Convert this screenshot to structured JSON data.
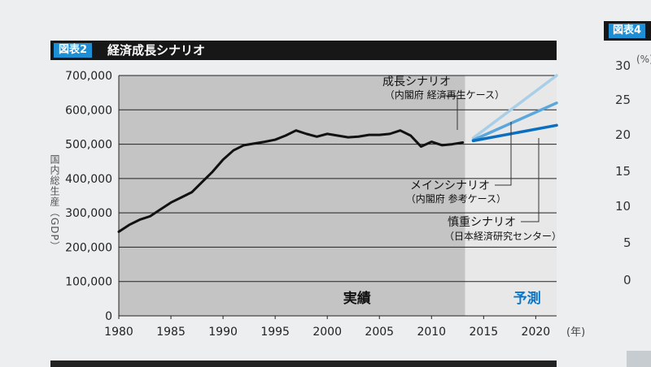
{
  "figure": {
    "tag": "図表2",
    "title": "経済成長シナリオ"
  },
  "right_panel": {
    "tag": "図表4",
    "unit": "(%)",
    "ticks": [
      "30",
      "25",
      "20",
      "15",
      "10",
      "5",
      "0"
    ]
  },
  "colors": {
    "banner": "#171717",
    "tag": "#1e8fd4",
    "actual_region": "#c4c4c4",
    "forecast_region": "#e8e8e8",
    "actual_line": "#111111",
    "growth_line": "#a9cfe8",
    "main_line": "#5aa7dc",
    "conservative_line": "#0a6fc0",
    "forecast_label": "#0a76c8"
  },
  "chart_data": {
    "type": "line",
    "ylabel": "国内総生産（GDP）",
    "xunit": "(年)",
    "ylim": [
      0,
      700000
    ],
    "xlim": [
      1980,
      2022
    ],
    "yticks": [
      0,
      100000,
      200000,
      300000,
      400000,
      500000,
      600000,
      700000
    ],
    "ytick_labels": [
      "0",
      "100,000",
      "200,000",
      "300,000",
      "400,000",
      "500,000",
      "600,000",
      "700,000"
    ],
    "xticks": [
      1980,
      1985,
      1990,
      1995,
      2000,
      2005,
      2010,
      2015,
      2020
    ],
    "xtick_labels": [
      "1980",
      "1985",
      "1990",
      "1995",
      "2000",
      "2005",
      "2010",
      "2015",
      "2020"
    ],
    "region_labels": {
      "actual": "実績",
      "forecast": "予測"
    },
    "forecast_start": 2014,
    "series": [
      {
        "key": "actual",
        "x": [
          1980,
          1981,
          1982,
          1983,
          1984,
          1985,
          1986,
          1987,
          1988,
          1989,
          1990,
          1991,
          1992,
          1993,
          1994,
          1995,
          1996,
          1997,
          1998,
          1999,
          2000,
          2001,
          2002,
          2003,
          2004,
          2005,
          2006,
          2007,
          2008,
          2009,
          2010,
          2011,
          2012,
          2013
        ],
        "y": [
          245000,
          265000,
          280000,
          290000,
          310000,
          330000,
          345000,
          360000,
          390000,
          420000,
          455000,
          482000,
          497000,
          502000,
          507000,
          513000,
          525000,
          540000,
          530000,
          522000,
          530000,
          525000,
          520000,
          522000,
          527000,
          527000,
          530000,
          540000,
          525000,
          493000,
          507000,
          497000,
          500000,
          505000
        ]
      },
      {
        "key": "growth",
        "name": "成長シナリオ",
        "x": [
          2014,
          2022
        ],
        "y": [
          518000,
          700000
        ]
      },
      {
        "key": "main",
        "name": "メインシナリオ",
        "x": [
          2014,
          2022
        ],
        "y": [
          512000,
          620000
        ]
      },
      {
        "key": "conservative",
        "name": "慎重シナリオ",
        "x": [
          2014,
          2022
        ],
        "y": [
          510000,
          555000
        ]
      }
    ],
    "annotations": [
      {
        "key": "growth",
        "label": "成長シナリオ",
        "sublabel": "（内閣府 経済再生ケース）"
      },
      {
        "key": "main",
        "label": "メインシナリオ",
        "sublabel": "（内閣府 参考ケース）"
      },
      {
        "key": "conservative",
        "label": "慎重シナリオ",
        "sublabel": "（日本経済研究センター）"
      }
    ]
  }
}
